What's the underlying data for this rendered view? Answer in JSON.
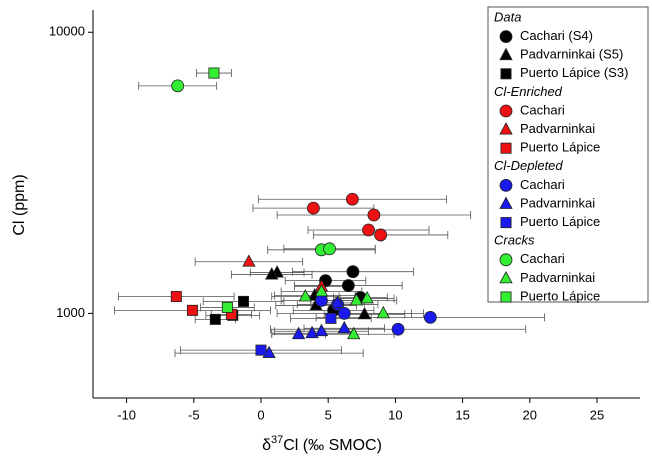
{
  "chart_data": {
    "type": "scatter",
    "log_y": true,
    "xlabel": {
      "prefix": "δ",
      "superscript": "37",
      "suffix": "Cl (‰ SMOC)"
    },
    "ylabel": "Cl (ppm)",
    "xlim": [
      -12.5,
      28.2
    ],
    "ylim": [
      500,
      12000
    ],
    "xticks": [
      -10,
      -5,
      0,
      5,
      10,
      15,
      20,
      25
    ],
    "yticks": [
      1000,
      10000
    ],
    "groups": [
      {
        "title": "Data",
        "series": [
          {
            "name": "Cachari (S4)",
            "color": "#000000",
            "marker": "circle",
            "x": [
              6.84,
              6.5,
              4.8,
              7.4,
              5.4
            ],
            "y": [
              1407,
              1256,
              1308,
              1139,
              1025
            ],
            "xerr": [
              4.5,
              4,
              3,
              2,
              3
            ]
          },
          {
            "name": "Padvarninkai (S5)",
            "color": "#000000",
            "marker": "triangle",
            "x": [
              1.2,
              0.8,
              4.0,
              4.1,
              7.7
            ],
            "y": [
              1397,
              1374,
              1158,
              1067,
              992
            ],
            "xerr": [
              2,
              3,
              3,
              3,
              3
            ]
          },
          {
            "name": "Puerto Lápice (S3)",
            "color": "#000000",
            "marker": "square",
            "x": [
              -1.3,
              -2.1,
              -3.4
            ],
            "y": [
              1103,
              984,
              952
            ],
            "xerr": [
              3,
              2,
              1.5
            ]
          }
        ]
      },
      {
        "title": "Cl-Enriched",
        "series": [
          {
            "name": "Cachari",
            "color": "#ee1111",
            "marker": "circle",
            "x": [
              6.8,
              3.9,
              8.4,
              8.0,
              8.9
            ],
            "y": [
              2547,
              2368,
              2238,
              1980,
              1901
            ],
            "xerr": [
              7,
              4.5,
              7.2,
              4.5,
              5
            ]
          },
          {
            "name": "Padvarninkai",
            "color": "#ee1111",
            "marker": "triangle",
            "x": [
              -0.9,
              4.5
            ],
            "y": [
              1526,
              1245
            ],
            "xerr": [
              4,
              2
            ]
          },
          {
            "name": "Puerto Lápice",
            "color": "#ee1111",
            "marker": "square",
            "x": [
              -6.3,
              -5.1,
              -2.2
            ],
            "y": [
              1148,
              1025,
              992
            ],
            "xerr": [
              4.3,
              5.8,
              1.5
            ]
          }
        ]
      },
      {
        "title": "Cl-Depleted",
        "series": [
          {
            "name": "Cachari",
            "color": "#1a1aee",
            "marker": "circle",
            "x": [
              12.6,
              10.2,
              4.5,
              5.7,
              6.2
            ],
            "y": [
              968,
              878,
              1111,
              1076,
              1000
            ],
            "xerr": [
              8.5,
              9.5,
              3,
              3,
              5
            ]
          },
          {
            "name": "Padvarninkai",
            "color": "#1a1aee",
            "marker": "triangle",
            "x": [
              3.8,
              4.5,
              6.2,
              2.8,
              0.6,
              5.7
            ],
            "y": [
              850,
              864,
              885,
              843,
              722,
              1090
            ],
            "xerr": [
              3,
              3.5,
              3,
              2,
              7,
              2
            ]
          },
          {
            "name": "Puerto Lápice",
            "color": "#1a1aee",
            "marker": "square",
            "x": [
              0,
              5.2
            ],
            "y": [
              740,
              960
            ],
            "xerr": [
              6,
              3
            ]
          }
        ]
      },
      {
        "title": "Cracks",
        "series": [
          {
            "name": "Cachari",
            "color": "#33ee33",
            "marker": "circle",
            "x": [
              -6.2,
              4.5,
              5.1
            ],
            "y": [
              6447,
              1683,
              1697
            ],
            "xerr": [
              2.9,
              4,
              3.4
            ]
          },
          {
            "name": "Padvarninkai",
            "color": "#33ee33",
            "marker": "triangle",
            "x": [
              3.3,
              6.9,
              9.1,
              7.1,
              7.9,
              4.5
            ],
            "y": [
              1148,
              843,
              1000,
              1111,
              1130,
              1196
            ],
            "xerr": [
              2.5,
              3,
              3,
              3,
              2,
              3
            ]
          },
          {
            "name": "Puerto Lápice",
            "color": "#33ee33",
            "marker": "square",
            "x": [
              -3.5,
              -2.5
            ],
            "y": [
              7160,
              1050
            ],
            "xerr": [
              1.3,
              2
            ]
          }
        ]
      }
    ]
  }
}
